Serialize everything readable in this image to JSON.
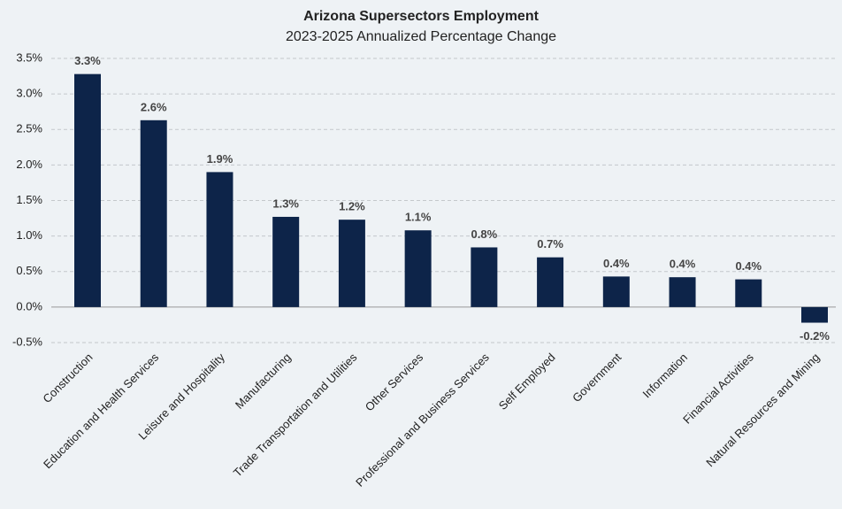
{
  "chart_data": {
    "type": "bar",
    "title": "Arizona Supersectors Employment",
    "subtitle": "2023-2025 Annualized  Percentage Change",
    "categories": [
      "Construction",
      "Education and Health Services",
      "Leisure and Hospitality",
      "Manufacturing",
      "Trade Transportation and Utilities",
      "Other Services",
      "Professional and Business Services",
      "Self Employed",
      "Government",
      "Information",
      "Financial Activities",
      "Natural Resources and Mining"
    ],
    "values": [
      3.28,
      2.63,
      1.9,
      1.27,
      1.23,
      1.08,
      0.84,
      0.7,
      0.43,
      0.42,
      0.39,
      -0.22
    ],
    "value_labels": [
      "3.3%",
      "2.6%",
      "1.9%",
      "1.3%",
      "1.2%",
      "1.1%",
      "0.8%",
      "0.7%",
      "0.4%",
      "0.4%",
      "0.4%",
      "-0.2%"
    ],
    "color": "#0d2449",
    "ylim": [
      -0.5,
      3.5
    ],
    "yticks": [
      {
        "value": -0.5,
        "label": "-0.5%"
      },
      {
        "value": 0,
        "label": "0.0%"
      },
      {
        "value": 0.5,
        "label": "0.5%"
      },
      {
        "value": 1,
        "label": "1.0%"
      },
      {
        "value": 1.5,
        "label": "1.5%"
      },
      {
        "value": 2,
        "label": "2.0%"
      },
      {
        "value": 2.5,
        "label": "2.5%"
      },
      {
        "value": 3,
        "label": "3.0%"
      },
      {
        "value": 3.5,
        "label": "3.5%"
      }
    ],
    "grid": true
  }
}
